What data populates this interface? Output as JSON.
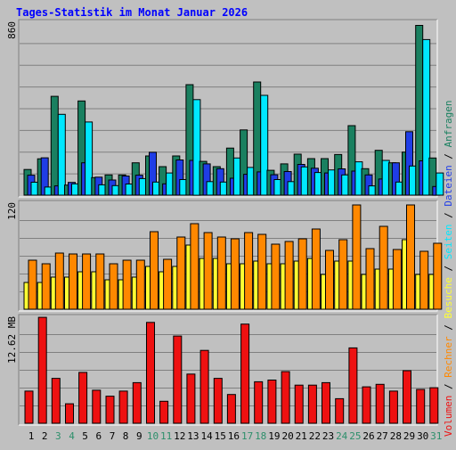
{
  "title": "Tages-Statistik im Monat Januar 2026",
  "colors": {
    "background": "#c0c0c0",
    "title": "#0000ff",
    "gridline": "#808080",
    "anfragen": "#1a8060",
    "dateien": "#1f3de6",
    "seiten": "#00e8ff",
    "besuche": "#ffff33",
    "rechner": "#ff8800",
    "volumen": "#ee1111",
    "weekend_label": "#2d8f6b",
    "weekday_label": "#000000"
  },
  "side_legend": {
    "anfragen": "Anfragen",
    "dateien": "Dateien",
    "seiten": "Seiten",
    "besuche": "Besuche",
    "rechner": "Rechner",
    "volumen": "Volumen",
    "separator": " / "
  },
  "chart_data": [
    {
      "type": "bar",
      "name": "panel-requests",
      "axis_label": "860",
      "ylim": [
        0,
        860
      ],
      "categories": [
        "1",
        "2",
        "3",
        "4",
        "5",
        "6",
        "7",
        "8",
        "9",
        "10",
        "11",
        "12",
        "13",
        "14",
        "15",
        "16",
        "17",
        "18",
        "19",
        "20",
        "21",
        "22",
        "23",
        "24",
        "25",
        "26",
        "27",
        "28",
        "29",
        "30",
        "31"
      ],
      "weekend": [
        "3",
        "4",
        "10",
        "11",
        "17",
        "18",
        "24",
        "25",
        "31"
      ],
      "series": [
        {
          "name": "Anfragen",
          "color_key": "anfragen",
          "values": [
            127,
            180,
            489,
            50,
            466,
            87,
            100,
            100,
            160,
            194,
            141,
            194,
            547,
            167,
            141,
            233,
            323,
            560,
            123,
            155,
            203,
            181,
            181,
            201,
            344,
            131,
            222,
            160,
            213,
            840,
            184
          ]
        },
        {
          "name": "Dateien",
          "color_key": "dateien",
          "values": [
            99,
            185,
            46,
            63,
            160,
            89,
            75,
            95,
            99,
            212,
            56,
            174,
            172,
            155,
            131,
            84,
            103,
            115,
            101,
            117,
            152,
            133,
            110,
            130,
            119,
            100,
            80,
            160,
            314,
            170,
            43
          ]
        },
        {
          "name": "Seiten",
          "color_key": "seiten",
          "values": [
            64,
            40,
            400,
            56,
            362,
            51,
            47,
            55,
            82,
            65,
            110,
            77,
            473,
            67,
            65,
            184,
            137,
            494,
            77,
            67,
            140,
            112,
            125,
            100,
            165,
            46,
            172,
            65,
            144,
            770,
            110
          ]
        }
      ]
    },
    {
      "type": "bar",
      "name": "panel-visits",
      "axis_label": "120",
      "ylim": [
        0,
        120
      ],
      "categories": [
        "1",
        "2",
        "3",
        "4",
        "5",
        "6",
        "7",
        "8",
        "9",
        "10",
        "11",
        "12",
        "13",
        "14",
        "15",
        "16",
        "17",
        "18",
        "19",
        "20",
        "21",
        "22",
        "23",
        "24",
        "25",
        "26",
        "27",
        "28",
        "29",
        "30",
        "31"
      ],
      "weekend": [
        "3",
        "4",
        "10",
        "11",
        "17",
        "18",
        "24",
        "25",
        "31"
      ],
      "series": [
        {
          "name": "Besuche",
          "color_key": "besuche",
          "values": [
            30,
            30,
            36,
            36,
            42,
            42,
            33,
            33,
            36,
            48,
            42,
            48,
            72,
            57,
            57,
            51,
            51,
            54,
            51,
            51,
            54,
            57,
            39,
            54,
            54,
            39,
            45,
            45,
            78,
            39,
            39
          ]
        },
        {
          "name": "Rechner",
          "color_key": "rechner",
          "values": [
            55,
            51,
            63,
            62,
            62,
            62,
            51,
            55,
            55,
            87,
            56,
            81,
            96,
            86,
            81,
            79,
            86,
            84,
            73,
            76,
            79,
            90,
            66,
            78,
            117,
            68,
            93,
            67,
            117,
            65,
            74
          ]
        }
      ]
    },
    {
      "type": "bar",
      "name": "panel-volume",
      "axis_label": "12.62 MB",
      "ylim": [
        0,
        12.62
      ],
      "categories": [
        "1",
        "2",
        "3",
        "4",
        "5",
        "6",
        "7",
        "8",
        "9",
        "10",
        "11",
        "12",
        "13",
        "14",
        "15",
        "16",
        "17",
        "18",
        "19",
        "20",
        "21",
        "22",
        "23",
        "24",
        "25",
        "26",
        "27",
        "28",
        "29",
        "30",
        "31"
      ],
      "weekend": [
        "3",
        "4",
        "10",
        "11",
        "17",
        "18",
        "24",
        "25",
        "31"
      ],
      "series": [
        {
          "name": "Volumen",
          "color_key": "volumen",
          "values": [
            3.8,
            12.5,
            5.3,
            2.3,
            6.0,
            3.9,
            3.2,
            3.8,
            4.8,
            11.9,
            2.6,
            10.3,
            5.8,
            8.6,
            5.3,
            3.4,
            11.7,
            4.9,
            5.1,
            6.1,
            4.5,
            4.5,
            4.8,
            2.9,
            8.9,
            4.3,
            4.6,
            3.8,
            6.2,
            4.0,
            4.2
          ]
        }
      ]
    }
  ]
}
